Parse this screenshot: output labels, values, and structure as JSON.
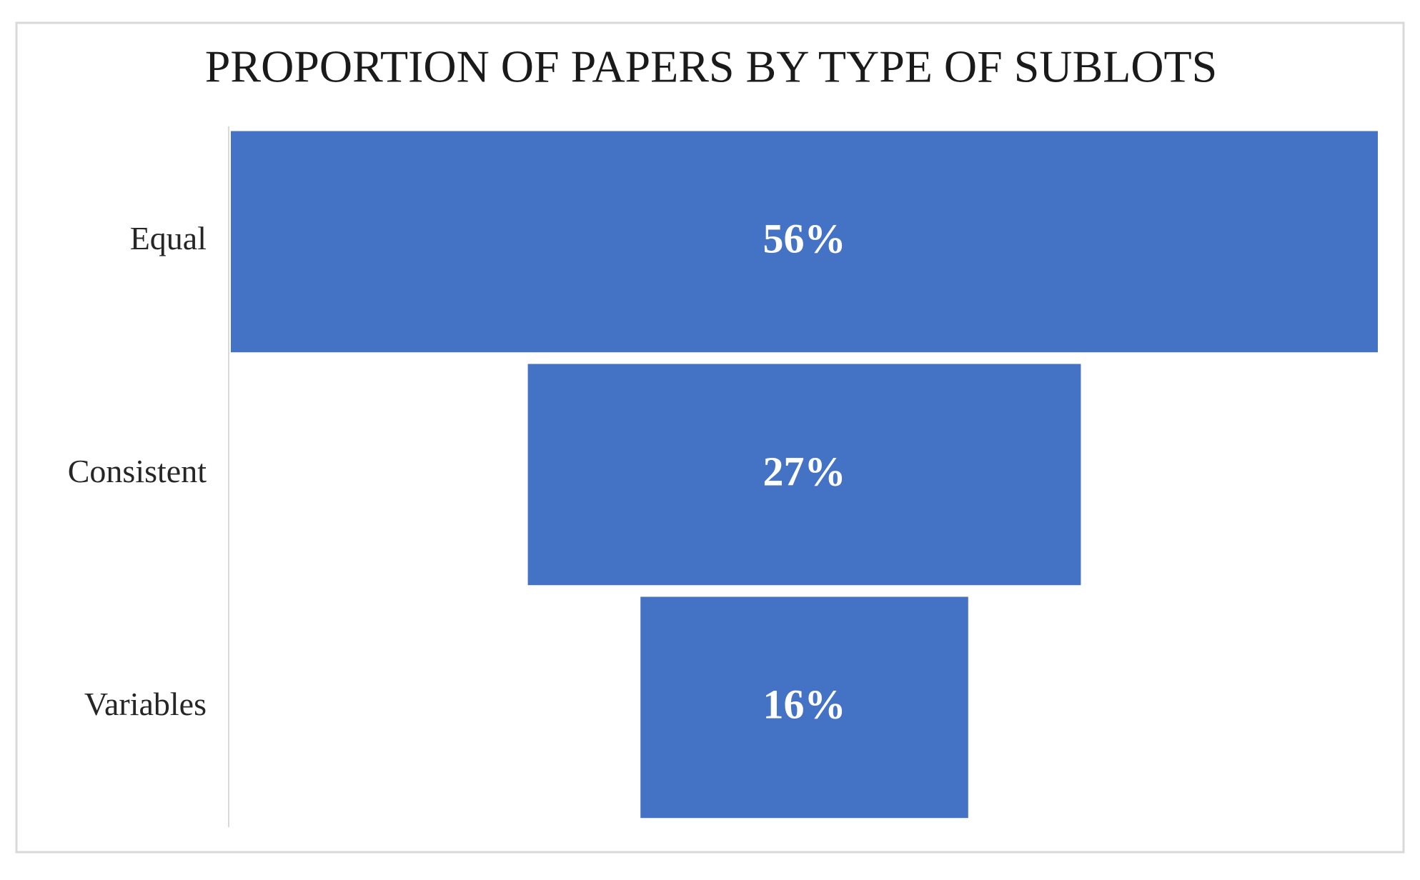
{
  "chart_data": {
    "type": "funnel",
    "title": "PROPORTION OF PAPERS BY TYPE OF SUBLOTS",
    "categories": [
      "Equal",
      "Consistent",
      "Variables"
    ],
    "values": [
      56,
      27,
      16
    ],
    "value_labels": [
      "56%",
      "27%",
      "16%"
    ],
    "color": "#4472c4"
  }
}
